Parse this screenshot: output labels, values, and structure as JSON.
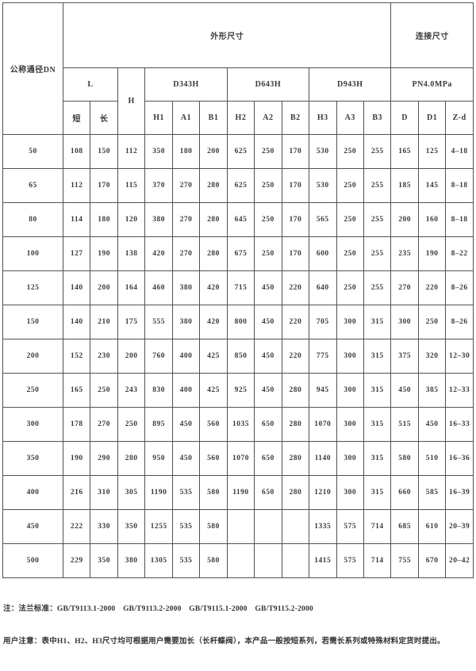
{
  "page": {
    "background": "#ffffff",
    "border_color": "#515151",
    "text_color": "#3a3a3a"
  },
  "table": {
    "header": {
      "dn": "公称通径DN",
      "outline": "外形尺寸",
      "connection": "连接尺寸",
      "l": "L",
      "h": "H",
      "l_short": "短",
      "l_long": "长",
      "groups": [
        {
          "label": "D343H",
          "cols": [
            "H1",
            "A1",
            "B1"
          ]
        },
        {
          "label": "D643H",
          "cols": [
            "H2",
            "A2",
            "B2"
          ]
        },
        {
          "label": "D943H",
          "cols": [
            "H3",
            "A3",
            "B3"
          ]
        },
        {
          "label": "PN4.0MPa",
          "cols": [
            "D",
            "D1",
            "Z-d"
          ]
        }
      ]
    },
    "rows": [
      {
        "dn": "50",
        "values": [
          "108",
          "150",
          "112",
          "350",
          "180",
          "200",
          "625",
          "250",
          "170",
          "530",
          "250",
          "255",
          "165",
          "125",
          "4–18"
        ]
      },
      {
        "dn": "65",
        "values": [
          "112",
          "170",
          "115",
          "370",
          "270",
          "280",
          "625",
          "250",
          "170",
          "530",
          "250",
          "255",
          "185",
          "145",
          "8–18"
        ]
      },
      {
        "dn": "80",
        "values": [
          "114",
          "180",
          "120",
          "380",
          "270",
          "280",
          "645",
          "250",
          "170",
          "565",
          "250",
          "255",
          "200",
          "160",
          "8–18"
        ]
      },
      {
        "dn": "100",
        "values": [
          "127",
          "190",
          "138",
          "420",
          "270",
          "280",
          "675",
          "250",
          "170",
          "600",
          "250",
          "255",
          "235",
          "190",
          "8–22"
        ]
      },
      {
        "dn": "125",
        "values": [
          "140",
          "200",
          "164",
          "460",
          "380",
          "420",
          "715",
          "450",
          "220",
          "640",
          "250",
          "255",
          "270",
          "220",
          "8–26"
        ]
      },
      {
        "dn": "150",
        "values": [
          "140",
          "210",
          "175",
          "555",
          "380",
          "420",
          "800",
          "450",
          "220",
          "705",
          "300",
          "315",
          "300",
          "250",
          "8–26"
        ]
      },
      {
        "dn": "200",
        "values": [
          "152",
          "230",
          "200",
          "760",
          "400",
          "425",
          "850",
          "450",
          "220",
          "775",
          "300",
          "315",
          "375",
          "320",
          "12–30"
        ]
      },
      {
        "dn": "250",
        "values": [
          "165",
          "250",
          "243",
          "830",
          "400",
          "425",
          "925",
          "450",
          "280",
          "945",
          "300",
          "315",
          "450",
          "385",
          "12–33"
        ]
      },
      {
        "dn": "300",
        "values": [
          "178",
          "270",
          "250",
          "895",
          "450",
          "560",
          "1035",
          "650",
          "280",
          "1070",
          "300",
          "315",
          "515",
          "450",
          "16–33"
        ]
      },
      {
        "dn": "350",
        "values": [
          "190",
          "290",
          "280",
          "950",
          "450",
          "560",
          "1070",
          "650",
          "280",
          "1140",
          "300",
          "315",
          "580",
          "510",
          "16–36"
        ]
      },
      {
        "dn": "400",
        "values": [
          "216",
          "310",
          "305",
          "1190",
          "535",
          "580",
          "1190",
          "650",
          "280",
          "1210",
          "300",
          "315",
          "660",
          "585",
          "16–39"
        ]
      },
      {
        "dn": "450",
        "values": [
          "222",
          "330",
          "350",
          "1255",
          "535",
          "580",
          "",
          "",
          "",
          "1335",
          "575",
          "714",
          "685",
          "610",
          "20–39"
        ]
      },
      {
        "dn": "500",
        "values": [
          "229",
          "350",
          "380",
          "1305",
          "535",
          "580",
          "",
          "",
          "",
          "1415",
          "575",
          "714",
          "755",
          "670",
          "20–42"
        ]
      }
    ]
  },
  "notes": {
    "line1": "注：法兰标准：GB/T9113.1-2000　GB/T9113.2-2000　GB/T9115.1-2000　GB/T9115.2-2000",
    "line2": "用户注意：表中H1、H2、H3尺寸均可根据用户需要加长（长杆蝶阀），本产品一般按短系列，若需长系列或特殊材料定货时提出。"
  }
}
